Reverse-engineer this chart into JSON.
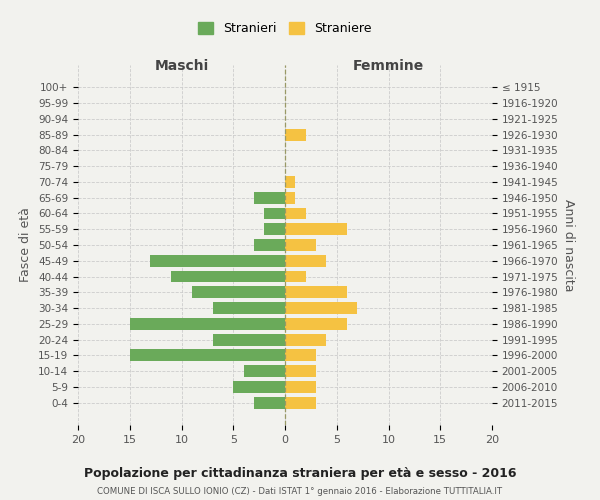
{
  "age_groups": [
    "100+",
    "95-99",
    "90-94",
    "85-89",
    "80-84",
    "75-79",
    "70-74",
    "65-69",
    "60-64",
    "55-59",
    "50-54",
    "45-49",
    "40-44",
    "35-39",
    "30-34",
    "25-29",
    "20-24",
    "15-19",
    "10-14",
    "5-9",
    "0-4"
  ],
  "birth_years": [
    "≤ 1915",
    "1916-1920",
    "1921-1925",
    "1926-1930",
    "1931-1935",
    "1936-1940",
    "1941-1945",
    "1946-1950",
    "1951-1955",
    "1956-1960",
    "1961-1965",
    "1966-1970",
    "1971-1975",
    "1976-1980",
    "1981-1985",
    "1986-1990",
    "1991-1995",
    "1996-2000",
    "2001-2005",
    "2006-2010",
    "2011-2015"
  ],
  "maschi": [
    0,
    0,
    0,
    0,
    0,
    0,
    0,
    3,
    2,
    2,
    3,
    13,
    11,
    9,
    7,
    15,
    7,
    15,
    4,
    5,
    3
  ],
  "femmine": [
    0,
    0,
    0,
    2,
    0,
    0,
    1,
    1,
    2,
    6,
    3,
    4,
    2,
    6,
    7,
    6,
    4,
    3,
    3,
    3,
    3
  ],
  "male_color": "#6aaa5a",
  "female_color": "#f5c242",
  "background_color": "#f2f2ee",
  "grid_color": "#cccccc",
  "title": "Popolazione per cittadinanza straniera per età e sesso - 2016",
  "subtitle": "COMUNE DI ISCA SULLO IONIO (CZ) - Dati ISTAT 1° gennaio 2016 - Elaborazione TUTTITALIA.IT",
  "xlabel_left": "Maschi",
  "xlabel_right": "Femmine",
  "ylabel_left": "Fasce di età",
  "ylabel_right": "Anni di nascita",
  "legend_male": "Stranieri",
  "legend_female": "Straniere",
  "xlim": 20,
  "bar_height": 0.75
}
